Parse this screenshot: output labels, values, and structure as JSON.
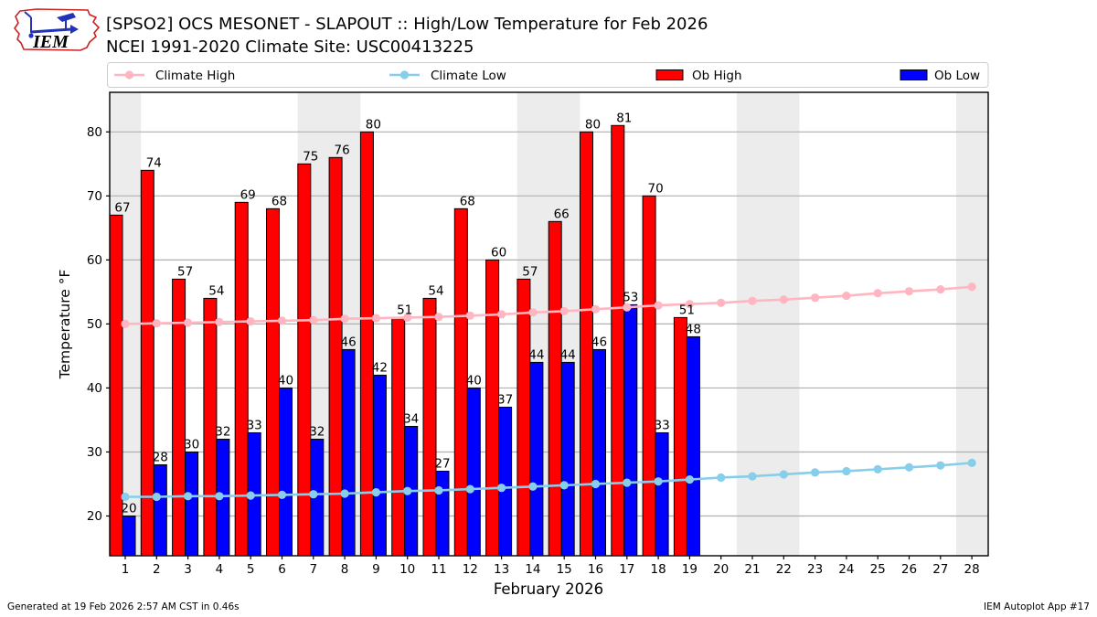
{
  "header": {
    "title_line1": "[SPSO2] OCS MESONET - SLAPOUT :: High/Low Temperature for Feb 2026",
    "title_line2": "NCEI 1991-2020 Climate Site: USC00413225",
    "logo_text": "IEM"
  },
  "footer": {
    "left": "Generated at 19 Feb 2026 2:57 AM CST in 0.46s",
    "right": "IEM Autoplot App #17"
  },
  "chart_data": {
    "type": "bar",
    "title": "[SPSO2] OCS MESONET - SLAPOUT :: High/Low Temperature for Feb 2026",
    "xlabel": "February 2026",
    "ylabel": "Temperature °F",
    "x": [
      1,
      2,
      3,
      4,
      5,
      6,
      7,
      8,
      9,
      10,
      11,
      12,
      13,
      14,
      15,
      16,
      17,
      18,
      19,
      20,
      21,
      22,
      23,
      24,
      25,
      26,
      27,
      28
    ],
    "xlim": [
      0.44,
      28.52
    ],
    "ylim": [
      13.8,
      86.2
    ],
    "yticks": [
      20,
      30,
      40,
      50,
      60,
      70,
      80
    ],
    "grid": "horizontal",
    "grid_color": "#b0b0b0",
    "band_color": "#ececec",
    "bar_edge_color": "#000000",
    "weekend_bands": [
      [
        0.5,
        1.5
      ],
      [
        6.5,
        8.5
      ],
      [
        13.5,
        15.5
      ],
      [
        20.5,
        22.5
      ],
      [
        27.5,
        28.5
      ]
    ],
    "legend": {
      "position": "top",
      "entries": [
        {
          "label": "Climate High",
          "type": "line",
          "color": "#ffb6c1"
        },
        {
          "label": "Climate Low",
          "type": "line",
          "color": "#87ceeb"
        },
        {
          "label": "Ob High",
          "type": "patch",
          "color": "#ff0000"
        },
        {
          "label": "Ob Low",
          "type": "patch",
          "color": "#0000ff"
        }
      ]
    },
    "series": [
      {
        "name": "Climate High",
        "type": "line",
        "color": "#ffb6c1",
        "x": [
          1,
          2,
          3,
          4,
          5,
          6,
          7,
          8,
          9,
          10,
          11,
          12,
          13,
          14,
          15,
          16,
          17,
          18,
          19,
          20,
          21,
          22,
          23,
          24,
          25,
          26,
          27,
          28
        ],
        "values": [
          50.0,
          50.1,
          50.2,
          50.3,
          50.4,
          50.5,
          50.6,
          50.8,
          50.9,
          51.0,
          51.1,
          51.3,
          51.5,
          51.8,
          52.0,
          52.3,
          52.6,
          52.9,
          53.1,
          53.3,
          53.6,
          53.8,
          54.1,
          54.4,
          54.8,
          55.1,
          55.4,
          55.8
        ]
      },
      {
        "name": "Climate Low",
        "type": "line",
        "color": "#87ceeb",
        "x": [
          1,
          2,
          3,
          4,
          5,
          6,
          7,
          8,
          9,
          10,
          11,
          12,
          13,
          14,
          15,
          16,
          17,
          18,
          19,
          20,
          21,
          22,
          23,
          24,
          25,
          26,
          27,
          28
        ],
        "values": [
          23.0,
          23.0,
          23.1,
          23.1,
          23.2,
          23.3,
          23.4,
          23.5,
          23.7,
          23.9,
          24.0,
          24.2,
          24.4,
          24.6,
          24.8,
          25.0,
          25.2,
          25.4,
          25.7,
          26.0,
          26.2,
          26.5,
          26.8,
          27.0,
          27.3,
          27.6,
          27.9,
          28.3
        ]
      },
      {
        "name": "Ob High",
        "type": "bar",
        "color": "#ff0000",
        "x": [
          1,
          2,
          3,
          4,
          5,
          6,
          7,
          8,
          9,
          10,
          11,
          12,
          13,
          14,
          15,
          16,
          17,
          18,
          19
        ],
        "values": [
          67,
          74,
          57,
          54,
          69,
          68,
          75,
          76,
          80,
          51,
          54,
          68,
          60,
          57,
          66,
          80,
          81,
          70,
          51
        ],
        "labels": [
          67,
          74,
          57,
          54,
          69,
          68,
          75,
          76,
          80,
          51,
          54,
          68,
          60,
          57,
          66,
          80,
          81,
          70,
          51
        ]
      },
      {
        "name": "Ob Low",
        "type": "bar",
        "color": "#0000ff",
        "x": [
          1,
          2,
          3,
          4,
          5,
          6,
          7,
          8,
          9,
          10,
          11,
          12,
          13,
          14,
          15,
          16,
          17,
          18,
          19
        ],
        "values": [
          20,
          28,
          30,
          32,
          33,
          40,
          32,
          46,
          42,
          34,
          27,
          40,
          37,
          44,
          44,
          46,
          53,
          33,
          48
        ],
        "labels": [
          20,
          28,
          30,
          32,
          33,
          40,
          32,
          46,
          42,
          34,
          27,
          40,
          37,
          44,
          44,
          46,
          53,
          33,
          48
        ]
      }
    ]
  }
}
